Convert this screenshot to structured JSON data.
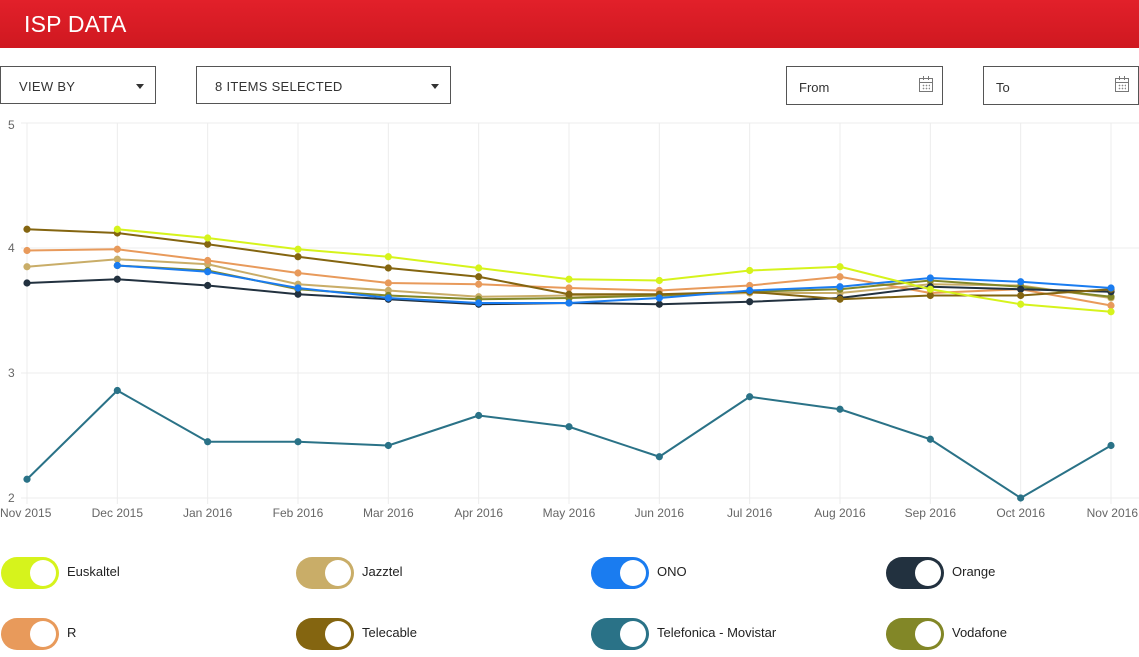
{
  "header": {
    "title": "ISP DATA"
  },
  "filters": {
    "view_by_label": "VIEW BY",
    "items_selected_label": "8 ITEMS SELECTED",
    "from_placeholder": "From",
    "to_placeholder": "To"
  },
  "legend": [
    {
      "label": "Euskaltel",
      "color": "#d6f31c"
    },
    {
      "label": "Jazztel",
      "color": "#c9ad68"
    },
    {
      "label": "ONO",
      "color": "#1a7cf0"
    },
    {
      "label": "Orange",
      "color": "#22313f"
    },
    {
      "label": "R",
      "color": "#e89a5b"
    },
    {
      "label": "Telecable",
      "color": "#846510"
    },
    {
      "label": "Telefonica - Movistar",
      "color": "#2a7287"
    },
    {
      "label": "Vodafone",
      "color": "#828727"
    }
  ],
  "chart_data": {
    "type": "line",
    "categories": [
      "Nov 2015",
      "Dec 2015",
      "Jan 2016",
      "Feb 2016",
      "Mar 2016",
      "Apr 2016",
      "May 2016",
      "Jun 2016",
      "Jul 2016",
      "Aug 2016",
      "Sep 2016",
      "Oct 2016",
      "Nov 2016"
    ],
    "ylim": [
      2,
      5
    ],
    "yticks": [
      "2",
      "3",
      "4",
      "5"
    ],
    "grid": true,
    "series": [
      {
        "name": "Telefonica - Movistar",
        "color": "#2a7287",
        "values": [
          2.15,
          2.86,
          2.45,
          2.45,
          2.42,
          2.66,
          2.57,
          2.33,
          2.81,
          2.71,
          2.47,
          2.0,
          2.42
        ]
      },
      {
        "name": "Jazztel",
        "color": "#c9ad68",
        "values": [
          3.85,
          3.91,
          3.87,
          3.71,
          3.66,
          3.61,
          3.62,
          3.62,
          3.64,
          3.64,
          3.71,
          3.7,
          3.6
        ]
      },
      {
        "name": "R",
        "color": "#e89a5b",
        "values": [
          3.98,
          3.99,
          3.9,
          3.8,
          3.72,
          3.71,
          3.68,
          3.66,
          3.7,
          3.77,
          3.64,
          3.67,
          3.54
        ]
      },
      {
        "name": "Vodafone",
        "color": "#828727",
        "values": [
          null,
          3.86,
          3.82,
          3.67,
          3.62,
          3.59,
          3.6,
          3.62,
          3.65,
          3.67,
          3.74,
          3.69,
          3.61
        ]
      },
      {
        "name": "Orange",
        "color": "#22313f",
        "values": [
          3.72,
          3.75,
          3.7,
          3.63,
          3.59,
          3.55,
          3.56,
          3.55,
          3.57,
          3.6,
          3.69,
          3.67,
          3.65
        ]
      },
      {
        "name": "Telecable",
        "color": "#846510",
        "values": [
          4.15,
          4.12,
          4.03,
          3.93,
          3.84,
          3.77,
          3.63,
          3.63,
          3.65,
          3.59,
          3.62,
          3.62,
          3.67
        ]
      },
      {
        "name": "ONO",
        "color": "#1a7cf0",
        "values": [
          null,
          3.86,
          3.81,
          3.68,
          3.6,
          3.56,
          3.56,
          3.6,
          3.66,
          3.69,
          3.76,
          3.73,
          3.68
        ]
      },
      {
        "name": "Euskaltel",
        "color": "#d6f31c",
        "values": [
          null,
          4.15,
          4.08,
          3.99,
          3.93,
          3.84,
          3.75,
          3.74,
          3.82,
          3.85,
          3.67,
          3.55,
          3.49
        ]
      }
    ]
  }
}
